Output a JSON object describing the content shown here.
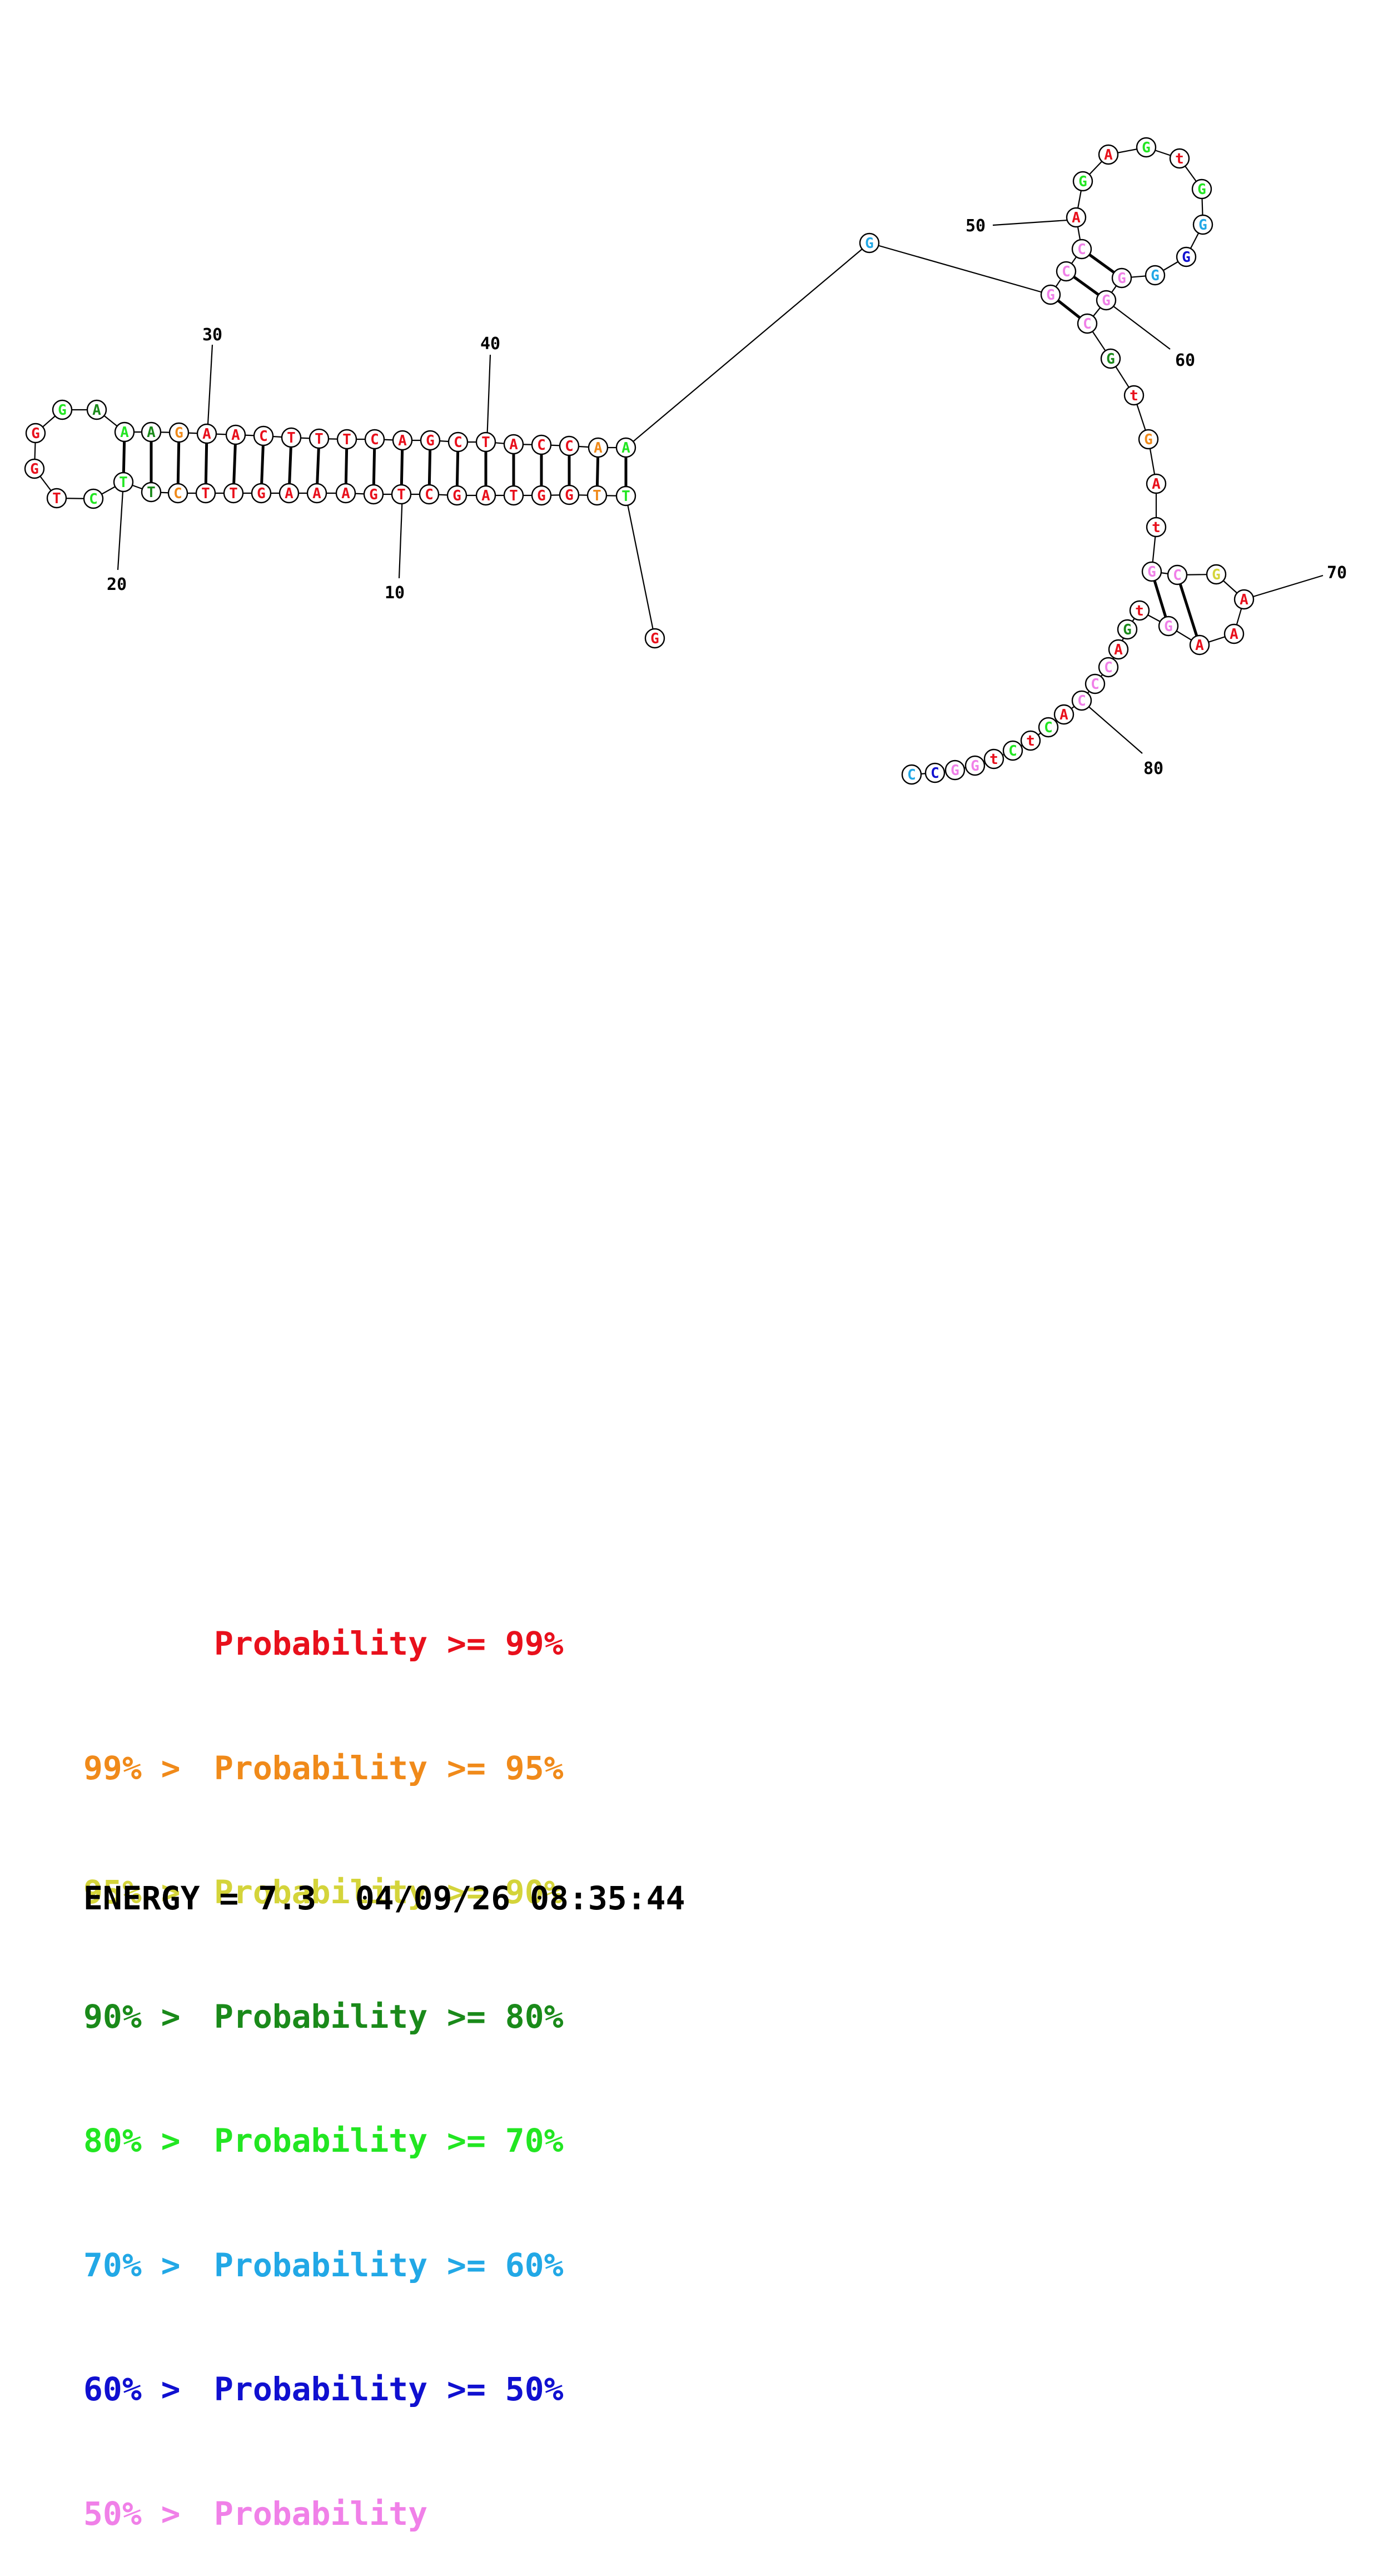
{
  "colors": {
    "red": "#e8101c",
    "orange": "#f08a1a",
    "yellow": "#d4d43a",
    "darkgreen": "#1a8a1a",
    "green": "#22e622",
    "cyan": "#22a8e6",
    "blue": "#1010d0",
    "pink": "#f080e8"
  },
  "sequence": [
    {
      "n": 1,
      "base": "G",
      "prob": "red"
    },
    {
      "n": 2,
      "base": "T",
      "prob": "green"
    },
    {
      "n": 3,
      "base": "T",
      "prob": "orange"
    },
    {
      "n": 4,
      "base": "G",
      "prob": "red"
    },
    {
      "n": 5,
      "base": "G",
      "prob": "red"
    },
    {
      "n": 6,
      "base": "T",
      "prob": "red"
    },
    {
      "n": 7,
      "base": "A",
      "prob": "red"
    },
    {
      "n": 8,
      "base": "G",
      "prob": "red"
    },
    {
      "n": 9,
      "base": "C",
      "prob": "red"
    },
    {
      "n": 10,
      "base": "T",
      "prob": "red"
    },
    {
      "n": 11,
      "base": "G",
      "prob": "red"
    },
    {
      "n": 12,
      "base": "A",
      "prob": "red"
    },
    {
      "n": 13,
      "base": "A",
      "prob": "red"
    },
    {
      "n": 14,
      "base": "A",
      "prob": "red"
    },
    {
      "n": 15,
      "base": "G",
      "prob": "red"
    },
    {
      "n": 16,
      "base": "T",
      "prob": "red"
    },
    {
      "n": 17,
      "base": "T",
      "prob": "red"
    },
    {
      "n": 18,
      "base": "C",
      "prob": "orange"
    },
    {
      "n": 19,
      "base": "T",
      "prob": "darkgreen"
    },
    {
      "n": 20,
      "base": "T",
      "prob": "green"
    },
    {
      "n": 21,
      "base": "C",
      "prob": "green"
    },
    {
      "n": 22,
      "base": "T",
      "prob": "red"
    },
    {
      "n": 23,
      "base": "G",
      "prob": "red"
    },
    {
      "n": 24,
      "base": "G",
      "prob": "red"
    },
    {
      "n": 25,
      "base": "G",
      "prob": "green"
    },
    {
      "n": 26,
      "base": "A",
      "prob": "darkgreen"
    },
    {
      "n": 27,
      "base": "A",
      "prob": "green"
    },
    {
      "n": 28,
      "base": "A",
      "prob": "darkgreen"
    },
    {
      "n": 29,
      "base": "G",
      "prob": "orange"
    },
    {
      "n": 30,
      "base": "A",
      "prob": "red"
    },
    {
      "n": 31,
      "base": "A",
      "prob": "red"
    },
    {
      "n": 32,
      "base": "C",
      "prob": "red"
    },
    {
      "n": 33,
      "base": "T",
      "prob": "red"
    },
    {
      "n": 34,
      "base": "T",
      "prob": "red"
    },
    {
      "n": 35,
      "base": "T",
      "prob": "red"
    },
    {
      "n": 36,
      "base": "C",
      "prob": "red"
    },
    {
      "n": 37,
      "base": "A",
      "prob": "red"
    },
    {
      "n": 38,
      "base": "G",
      "prob": "red"
    },
    {
      "n": 39,
      "base": "C",
      "prob": "red"
    },
    {
      "n": 40,
      "base": "T",
      "prob": "red"
    },
    {
      "n": 41,
      "base": "A",
      "prob": "red"
    },
    {
      "n": 42,
      "base": "C",
      "prob": "red"
    },
    {
      "n": 43,
      "base": "C",
      "prob": "red"
    },
    {
      "n": 44,
      "base": "A",
      "prob": "orange"
    },
    {
      "n": 45,
      "base": "A",
      "prob": "green"
    },
    {
      "n": 46,
      "base": "G",
      "prob": "cyan"
    },
    {
      "n": 47,
      "base": "G",
      "prob": "pink"
    },
    {
      "n": 48,
      "base": "C",
      "prob": "pink"
    },
    {
      "n": 49,
      "base": "C",
      "prob": "pink"
    },
    {
      "n": 50,
      "base": "A",
      "prob": "red"
    },
    {
      "n": 51,
      "base": "G",
      "prob": "green"
    },
    {
      "n": 52,
      "base": "A",
      "prob": "red"
    },
    {
      "n": 53,
      "base": "G",
      "prob": "green"
    },
    {
      "n": 54,
      "base": "t",
      "prob": "red"
    },
    {
      "n": 55,
      "base": "G",
      "prob": "green"
    },
    {
      "n": 56,
      "base": "G",
      "prob": "cyan"
    },
    {
      "n": 57,
      "base": "G",
      "prob": "blue"
    },
    {
      "n": 58,
      "base": "G",
      "prob": "cyan"
    },
    {
      "n": 59,
      "base": "G",
      "prob": "pink"
    },
    {
      "n": 60,
      "base": "G",
      "prob": "pink"
    },
    {
      "n": 61,
      "base": "C",
      "prob": "pink"
    },
    {
      "n": 62,
      "base": "G",
      "prob": "darkgreen"
    },
    {
      "n": 63,
      "base": "t",
      "prob": "red"
    },
    {
      "n": 64,
      "base": "G",
      "prob": "orange"
    },
    {
      "n": 65,
      "base": "A",
      "prob": "red"
    },
    {
      "n": 66,
      "base": "t",
      "prob": "red"
    },
    {
      "n": 67,
      "base": "G",
      "prob": "pink"
    },
    {
      "n": 68,
      "base": "C",
      "prob": "pink"
    },
    {
      "n": 69,
      "base": "G",
      "prob": "yellow"
    },
    {
      "n": 70,
      "base": "A",
      "prob": "red"
    },
    {
      "n": 71,
      "base": "A",
      "prob": "red"
    },
    {
      "n": 72,
      "base": "A",
      "prob": "red"
    },
    {
      "n": 73,
      "base": "G",
      "prob": "pink"
    },
    {
      "n": 74,
      "base": "t",
      "prob": "red"
    },
    {
      "n": 75,
      "base": "G",
      "prob": "darkgreen"
    },
    {
      "n": 76,
      "base": "A",
      "prob": "red"
    },
    {
      "n": 77,
      "base": "C",
      "prob": "pink"
    },
    {
      "n": 78,
      "base": "C",
      "prob": "pink"
    },
    {
      "n": 79,
      "base": "C",
      "prob": "pink"
    },
    {
      "n": 80,
      "base": "A",
      "prob": "red"
    },
    {
      "n": 81,
      "base": "C",
      "prob": "green"
    },
    {
      "n": 82,
      "base": "t",
      "prob": "red"
    },
    {
      "n": 83,
      "base": "C",
      "prob": "green"
    },
    {
      "n": 84,
      "base": "t",
      "prob": "red"
    },
    {
      "n": 85,
      "base": "G",
      "prob": "pink"
    },
    {
      "n": 86,
      "base": "G",
      "prob": "pink"
    },
    {
      "n": 87,
      "base": "C",
      "prob": "blue"
    },
    {
      "n": 88,
      "base": "C",
      "prob": "cyan"
    }
  ],
  "pairs": [
    [
      2,
      45
    ],
    [
      3,
      44
    ],
    [
      4,
      43
    ],
    [
      5,
      42
    ],
    [
      6,
      41
    ],
    [
      7,
      40
    ],
    [
      8,
      39
    ],
    [
      9,
      38
    ],
    [
      10,
      37
    ],
    [
      11,
      36
    ],
    [
      12,
      35
    ],
    [
      13,
      34
    ],
    [
      14,
      33
    ],
    [
      15,
      32
    ],
    [
      16,
      31
    ],
    [
      17,
      30
    ],
    [
      18,
      29
    ],
    [
      19,
      28
    ],
    [
      20,
      27
    ],
    [
      47,
      61
    ],
    [
      48,
      60
    ],
    [
      49,
      59
    ],
    [
      67,
      73
    ],
    [
      68,
      72
    ]
  ],
  "position_labels": [
    "10",
    "20",
    "30",
    "40",
    "50",
    "60",
    "70",
    "80"
  ],
  "legend": [
    {
      "prefix": "",
      "text": "Probability >= 99%",
      "color": "red"
    },
    {
      "prefix": "99% >",
      "text": "Probability >= 95%",
      "color": "orange"
    },
    {
      "prefix": "95% >",
      "text": "Probability >= 90%",
      "color": "yellow"
    },
    {
      "prefix": "90% >",
      "text": "Probability >= 80%",
      "color": "darkgreen"
    },
    {
      "prefix": "80% >",
      "text": "Probability >= 70%",
      "color": "green"
    },
    {
      "prefix": "70% >",
      "text": "Probability >= 60%",
      "color": "cyan"
    },
    {
      "prefix": "60% >",
      "text": "Probability >= 50%",
      "color": "blue"
    },
    {
      "prefix": "50% >",
      "text": "Probability",
      "color": "pink"
    }
  ],
  "energy_text": "ENERGY = 7.3  04/09/26 08:35:44"
}
